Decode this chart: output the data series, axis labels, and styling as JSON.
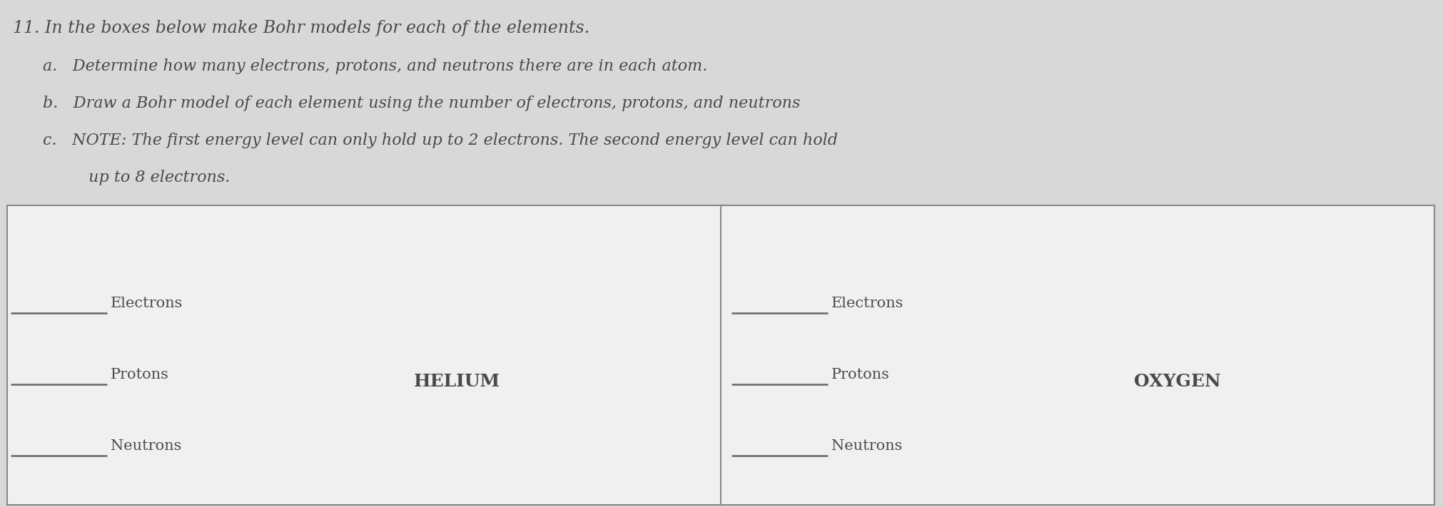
{
  "bg_color": "#d8d8d8",
  "box_bg": "#e8e8e8",
  "box_interior": "#f0f0f0",
  "text_color": "#4a4a4a",
  "title_line": "11. In the boxes below make Bohr models for each of the elements.",
  "bullet_a": "a.   Determine how many electrons, protons, and neutrons there are in each atom.",
  "bullet_b": "b.   Draw a Bohr model of each element using the number of electrons, protons, and neutrons",
  "bullet_c": "c.   NOTE: The first energy level can only hold up to 2 electrons. The second energy level can hold",
  "bullet_c2": "         up to 8 electrons.",
  "box_border_color": "#888888",
  "line_color": "#666666",
  "label_electrons": "Electrons",
  "label_protons": "Protons",
  "label_neutrons": "Neutrons",
  "element1": "HELIUM",
  "element2": "OXYGEN",
  "font_size_title": 17,
  "font_size_body": 16,
  "font_size_labels": 15,
  "font_size_element": 18
}
